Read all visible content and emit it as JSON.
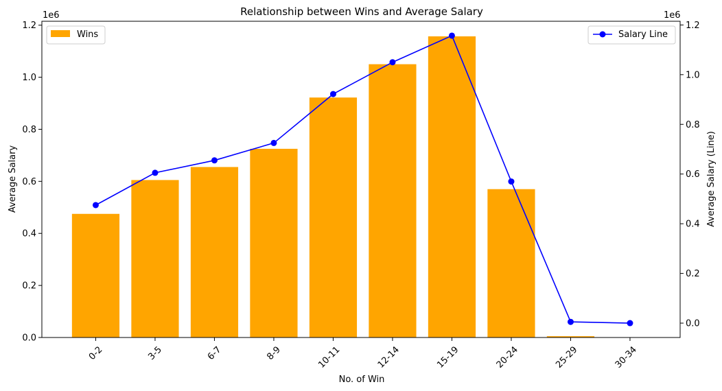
{
  "chart_data": {
    "type": "bar",
    "title": "Relationship between Wins and Average Salary",
    "xlabel": "No. of Win",
    "ylabel": "Average Salary",
    "ylabel_right": "Average Salary (Line)",
    "offset_text_left": "1e6",
    "offset_text_right": "1e6",
    "categories": [
      "0-2",
      "3-5",
      "6-7",
      "8-9",
      "10-11",
      "12-14",
      "15-19",
      "20-24",
      "25-29",
      "30-34"
    ],
    "series": [
      {
        "name": "Wins",
        "type": "bar",
        "axis": "left",
        "color": "#FFA500",
        "values": [
          475000,
          605000,
          655000,
          725000,
          922000,
          1050000,
          1157000,
          570000,
          5000,
          0
        ]
      },
      {
        "name": "Salary Line",
        "type": "line",
        "axis": "right",
        "color": "#0000FF",
        "marker": "circle",
        "values": [
          475000,
          605000,
          655000,
          725000,
          922000,
          1050000,
          1157000,
          570000,
          5000,
          0
        ]
      }
    ],
    "ylim": [
      0,
      1215000
    ],
    "yticks": [
      0,
      200000,
      400000,
      600000,
      800000,
      1000000,
      1200000
    ],
    "ytick_labels": [
      "0.0",
      "0.2",
      "0.4",
      "0.6",
      "0.8",
      "1.0",
      "1.2"
    ],
    "ylim_right": [
      -57850,
      1214850
    ],
    "yticks_right": [
      0,
      200000,
      400000,
      600000,
      800000,
      1000000,
      1200000
    ],
    "ytick_labels_right": [
      "0.0",
      "0.2",
      "0.4",
      "0.6",
      "0.8",
      "1.0",
      "1.2"
    ],
    "legend_left": "top-left",
    "legend_right": "top-right",
    "grid": false
  }
}
